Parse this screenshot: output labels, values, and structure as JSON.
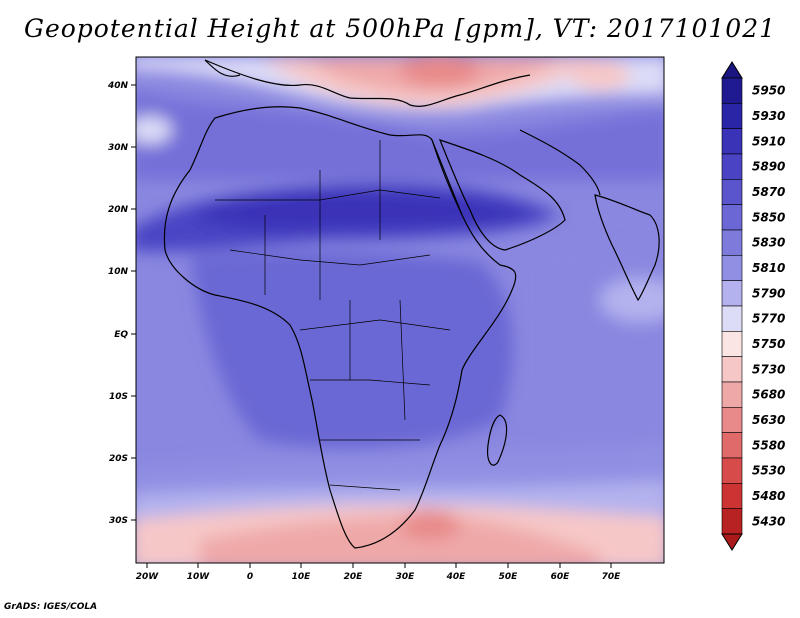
{
  "title": "Geopotential Height at 500hPa [gpm], VT: 2017101021",
  "credit": "GrADS: IGES/COLA",
  "map": {
    "region": "Africa",
    "lon_labels": [
      "20W",
      "10W",
      "0",
      "10E",
      "20E",
      "30E",
      "40E",
      "50E",
      "60E",
      "70E"
    ],
    "lat_labels": [
      "40N",
      "30N",
      "20N",
      "10N",
      "EQ",
      "10S",
      "20S",
      "30S"
    ]
  },
  "colorbar": {
    "levels": [
      "5950",
      "5930",
      "5910",
      "5890",
      "5870",
      "5850",
      "5830",
      "5810",
      "5790",
      "5770",
      "5750",
      "5730",
      "5680",
      "5630",
      "5580",
      "5530",
      "5480",
      "5430"
    ],
    "colors": [
      "#1f1a8f",
      "#2a24a6",
      "#3a33b8",
      "#4a44c4",
      "#5a55cc",
      "#6b67d4",
      "#7d7adc",
      "#918fe3",
      "#b3b2ee",
      "#dcdcf7",
      "#fbe4e4",
      "#f6c7c7",
      "#efa8a8",
      "#e88a8a",
      "#e06a6a",
      "#d84b4b",
      "#cc3333",
      "#b82222"
    ],
    "top_arrow_color": "#1a1580",
    "bottom_arrow_color": "#aa1a1a"
  }
}
